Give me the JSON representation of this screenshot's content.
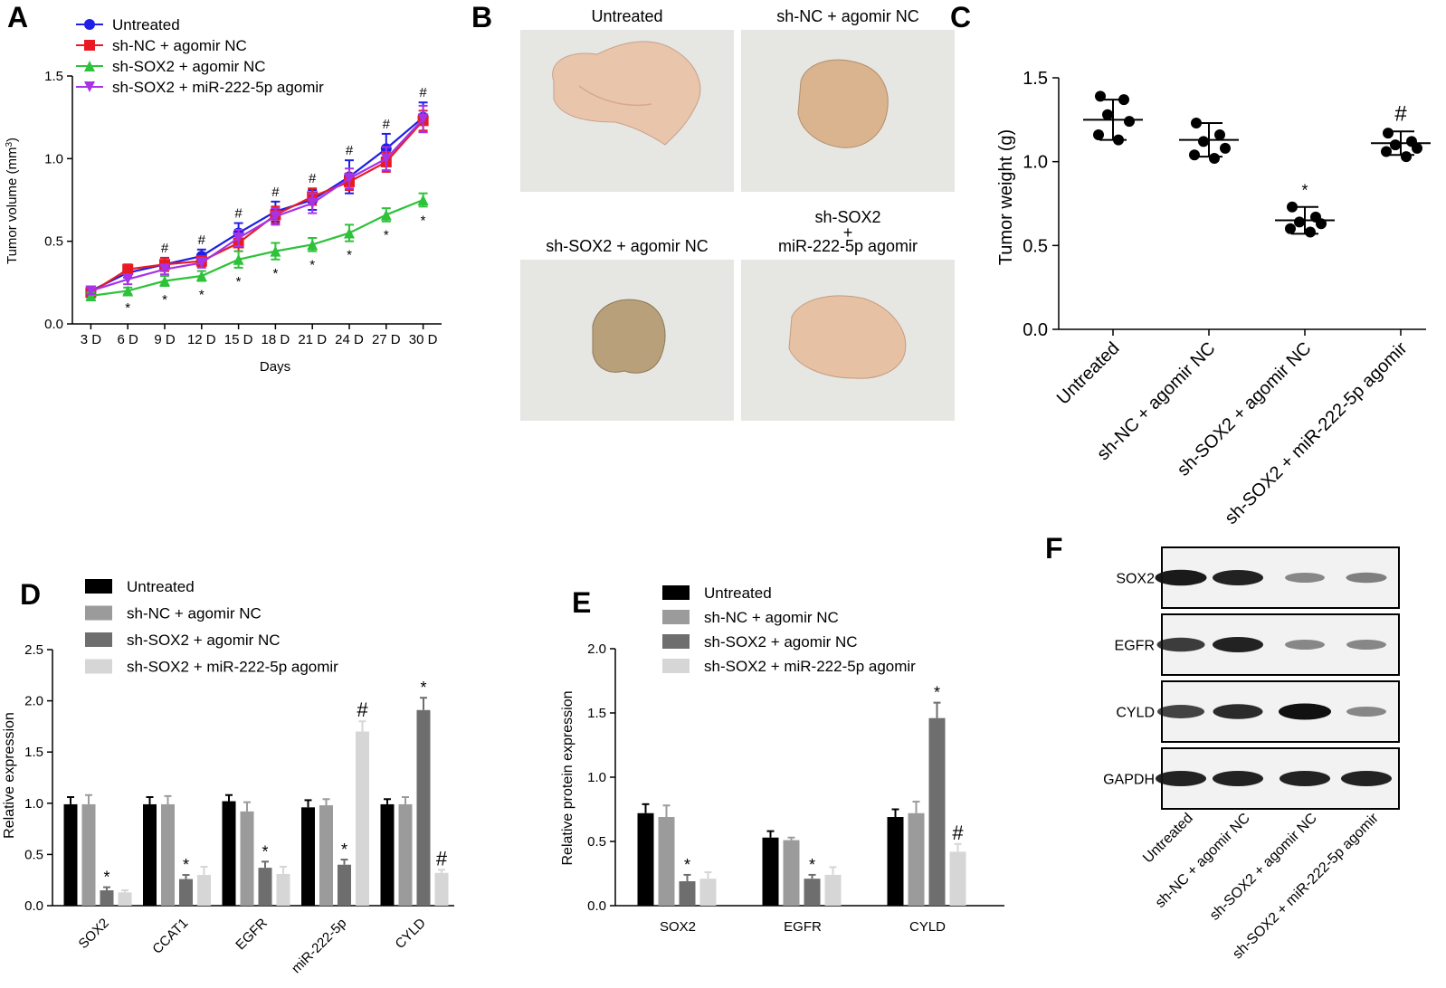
{
  "panels": {
    "A": {
      "letter": "A"
    },
    "B": {
      "letter": "B"
    },
    "C": {
      "letter": "C"
    },
    "D": {
      "letter": "D"
    },
    "E": {
      "letter": "E"
    },
    "F": {
      "letter": "F"
    }
  },
  "colors": {
    "untreated": "#1f1fe6",
    "shnc": "#e81b24",
    "shsox2": "#2ec23a",
    "rescue": "#a633e6",
    "bar_black": "#000000",
    "bar_gray": "#9b9b9b",
    "bar_dark": "#6e6e6e",
    "bar_light": "#d6d6d6",
    "tissue_bg": "#e6e6e3"
  },
  "chart_data": [
    {
      "panel": "A",
      "type": "line",
      "x": [
        "3 D",
        "6 D",
        "9 D",
        "12 D",
        "15 D",
        "18 D",
        "21 D",
        "24 D",
        "27 D",
        "30 D"
      ],
      "xlabel": "Days",
      "ylabel_main": "Tumor volume (mm",
      "ylabel_sup": "3",
      "ylabel_end": ")",
      "ylim": [
        0,
        1.5
      ],
      "yticks": [
        "0.0",
        "0.5",
        "1.0",
        "1.5"
      ],
      "series": [
        {
          "name": "Untreated",
          "marker": "circle",
          "colorKey": "untreated",
          "values": [
            0.2,
            0.31,
            0.36,
            0.41,
            0.55,
            0.68,
            0.75,
            0.89,
            1.06,
            1.25
          ],
          "err": [
            0.02,
            0.03,
            0.04,
            0.04,
            0.06,
            0.06,
            0.06,
            0.1,
            0.09,
            0.09
          ]
        },
        {
          "name": "sh-NC + agomir NC",
          "marker": "square",
          "colorKey": "shnc",
          "values": [
            0.19,
            0.33,
            0.36,
            0.38,
            0.49,
            0.66,
            0.77,
            0.86,
            0.98,
            1.23
          ],
          "err": [
            0.02,
            0.03,
            0.04,
            0.03,
            0.05,
            0.05,
            0.05,
            0.05,
            0.06,
            0.06
          ]
        },
        {
          "name": "sh-SOX2 + agomir NC",
          "marker": "triangle",
          "colorKey": "shsox2",
          "values": [
            0.17,
            0.2,
            0.26,
            0.29,
            0.39,
            0.44,
            0.48,
            0.55,
            0.66,
            0.75
          ],
          "err": [
            0.02,
            0.02,
            0.03,
            0.03,
            0.05,
            0.05,
            0.04,
            0.05,
            0.04,
            0.04
          ]
        },
        {
          "name": "sh-SOX2 + miR-222-5p agomir",
          "marker": "triangle-down",
          "colorKey": "rescue",
          "values": [
            0.2,
            0.27,
            0.33,
            0.37,
            0.52,
            0.65,
            0.73,
            0.88,
            1.0,
            1.24
          ],
          "err": [
            0.02,
            0.03,
            0.03,
            0.03,
            0.05,
            0.05,
            0.06,
            0.06,
            0.07,
            0.08
          ]
        }
      ],
      "hash_labels": [
        "",
        "",
        "#",
        "#",
        "#",
        "#",
        "#",
        "#",
        "#",
        "#"
      ],
      "star_labels": [
        "",
        "*",
        "*",
        "*",
        "*",
        "*",
        "*",
        "*",
        "*",
        "*"
      ]
    },
    {
      "panel": "C",
      "type": "scatter",
      "categories": [
        "Untreated",
        "sh-NC + agomir NC",
        "sh-SOX2 + agomir NC",
        "sh-SOX2 + miR-222-5p agomir"
      ],
      "ylabel": "Tumor weight (g)",
      "ylim": [
        0,
        1.5
      ],
      "yticks": [
        "0.0",
        "0.5",
        "1.0",
        "1.5"
      ],
      "points": [
        [
          1.39,
          1.37,
          1.28,
          1.24,
          1.16,
          1.13
        ],
        [
          1.23,
          1.16,
          1.12,
          1.08,
          1.04,
          1.02
        ],
        [
          0.73,
          0.67,
          0.64,
          0.63,
          0.6,
          0.58
        ],
        [
          1.17,
          1.12,
          1.1,
          1.08,
          1.06,
          1.03
        ]
      ],
      "means": [
        1.25,
        1.13,
        0.65,
        1.11
      ],
      "sd": [
        0.12,
        0.1,
        0.08,
        0.07
      ],
      "labels": [
        "",
        "",
        "*",
        "#"
      ]
    },
    {
      "panel": "D",
      "type": "bar",
      "categories": [
        "SOX2",
        "CCAT1",
        "EGFR",
        "miR-222-5p",
        "CYLD"
      ],
      "ylabel": "Relative expression",
      "ylim": [
        0,
        2.5
      ],
      "yticks": [
        "0.0",
        "0.5",
        "1.0",
        "1.5",
        "2.0",
        "2.5"
      ],
      "series": [
        {
          "name": "Untreated",
          "colorKey": "bar_black",
          "values": [
            0.99,
            0.99,
            1.02,
            0.96,
            0.99
          ],
          "err": [
            0.07,
            0.07,
            0.06,
            0.07,
            0.05
          ]
        },
        {
          "name": "sh-NC + agomir NC",
          "colorKey": "bar_gray",
          "values": [
            0.99,
            0.99,
            0.92,
            0.98,
            0.99
          ],
          "err": [
            0.09,
            0.08,
            0.09,
            0.06,
            0.07
          ]
        },
        {
          "name": "sh-SOX2 + agomir NC",
          "colorKey": "bar_dark",
          "values": [
            0.15,
            0.26,
            0.37,
            0.4,
            1.91
          ],
          "err": [
            0.03,
            0.04,
            0.06,
            0.05,
            0.12
          ]
        },
        {
          "name": "sh-SOX2 + miR-222-5p agomir",
          "colorKey": "bar_light",
          "values": [
            0.13,
            0.3,
            0.31,
            1.7,
            0.32
          ],
          "err": [
            0.02,
            0.08,
            0.07,
            0.1,
            0.03
          ]
        }
      ],
      "annotations": [
        {
          "group": 0,
          "series": 2,
          "text": "*"
        },
        {
          "group": 1,
          "series": 2,
          "text": "*"
        },
        {
          "group": 2,
          "series": 2,
          "text": "*"
        },
        {
          "group": 3,
          "series": 2,
          "text": "*"
        },
        {
          "group": 3,
          "series": 3,
          "text": "#"
        },
        {
          "group": 4,
          "series": 2,
          "text": "*"
        },
        {
          "group": 4,
          "series": 3,
          "text": "#"
        }
      ]
    },
    {
      "panel": "E",
      "type": "bar",
      "categories": [
        "SOX2",
        "EGFR",
        "CYLD"
      ],
      "ylabel": "Relative protein expression",
      "ylim": [
        0,
        2.0
      ],
      "yticks": [
        "0.0",
        "0.5",
        "1.0",
        "1.5",
        "2.0"
      ],
      "series": [
        {
          "name": "Untreated",
          "colorKey": "bar_black",
          "values": [
            0.72,
            0.53,
            0.69
          ],
          "err": [
            0.07,
            0.05,
            0.06
          ]
        },
        {
          "name": "sh-NC + agomir NC",
          "colorKey": "bar_gray",
          "values": [
            0.69,
            0.51,
            0.72
          ],
          "err": [
            0.09,
            0.02,
            0.09
          ]
        },
        {
          "name": "sh-SOX2 + agomir NC",
          "colorKey": "bar_dark",
          "values": [
            0.19,
            0.21,
            1.46
          ],
          "err": [
            0.05,
            0.03,
            0.12
          ]
        },
        {
          "name": "sh-SOX2 + miR-222-5p agomir",
          "colorKey": "bar_light",
          "values": [
            0.21,
            0.24,
            0.42
          ],
          "err": [
            0.05,
            0.06,
            0.06
          ]
        }
      ],
      "annotations": [
        {
          "group": 0,
          "series": 2,
          "text": "*"
        },
        {
          "group": 1,
          "series": 2,
          "text": "*"
        },
        {
          "group": 2,
          "series": 2,
          "text": "*"
        },
        {
          "group": 2,
          "series": 3,
          "text": "#"
        }
      ]
    }
  ],
  "photos": {
    "labels": [
      "Untreated",
      "sh-NC + agomir NC",
      "sh-SOX2 + agomir NC"
    ],
    "label4_line1": "sh-SOX2",
    "label4_line2": "+",
    "label4_line3": "miR-222-5p agomir"
  },
  "blot": {
    "rows": [
      "SOX2",
      "EGFR",
      "CYLD",
      "GAPDH"
    ],
    "lanes": [
      "Untreated",
      "sh-NC + agomir NC",
      "sh-SOX2 + agomir NC",
      "sh-SOX2 + miR-222-5p agomir"
    ],
    "intensity": [
      [
        0.95,
        0.9,
        0.3,
        0.35
      ],
      [
        0.75,
        0.9,
        0.3,
        0.3
      ],
      [
        0.7,
        0.85,
        1.0,
        0.3
      ],
      [
        0.9,
        0.9,
        0.9,
        0.9
      ]
    ]
  }
}
